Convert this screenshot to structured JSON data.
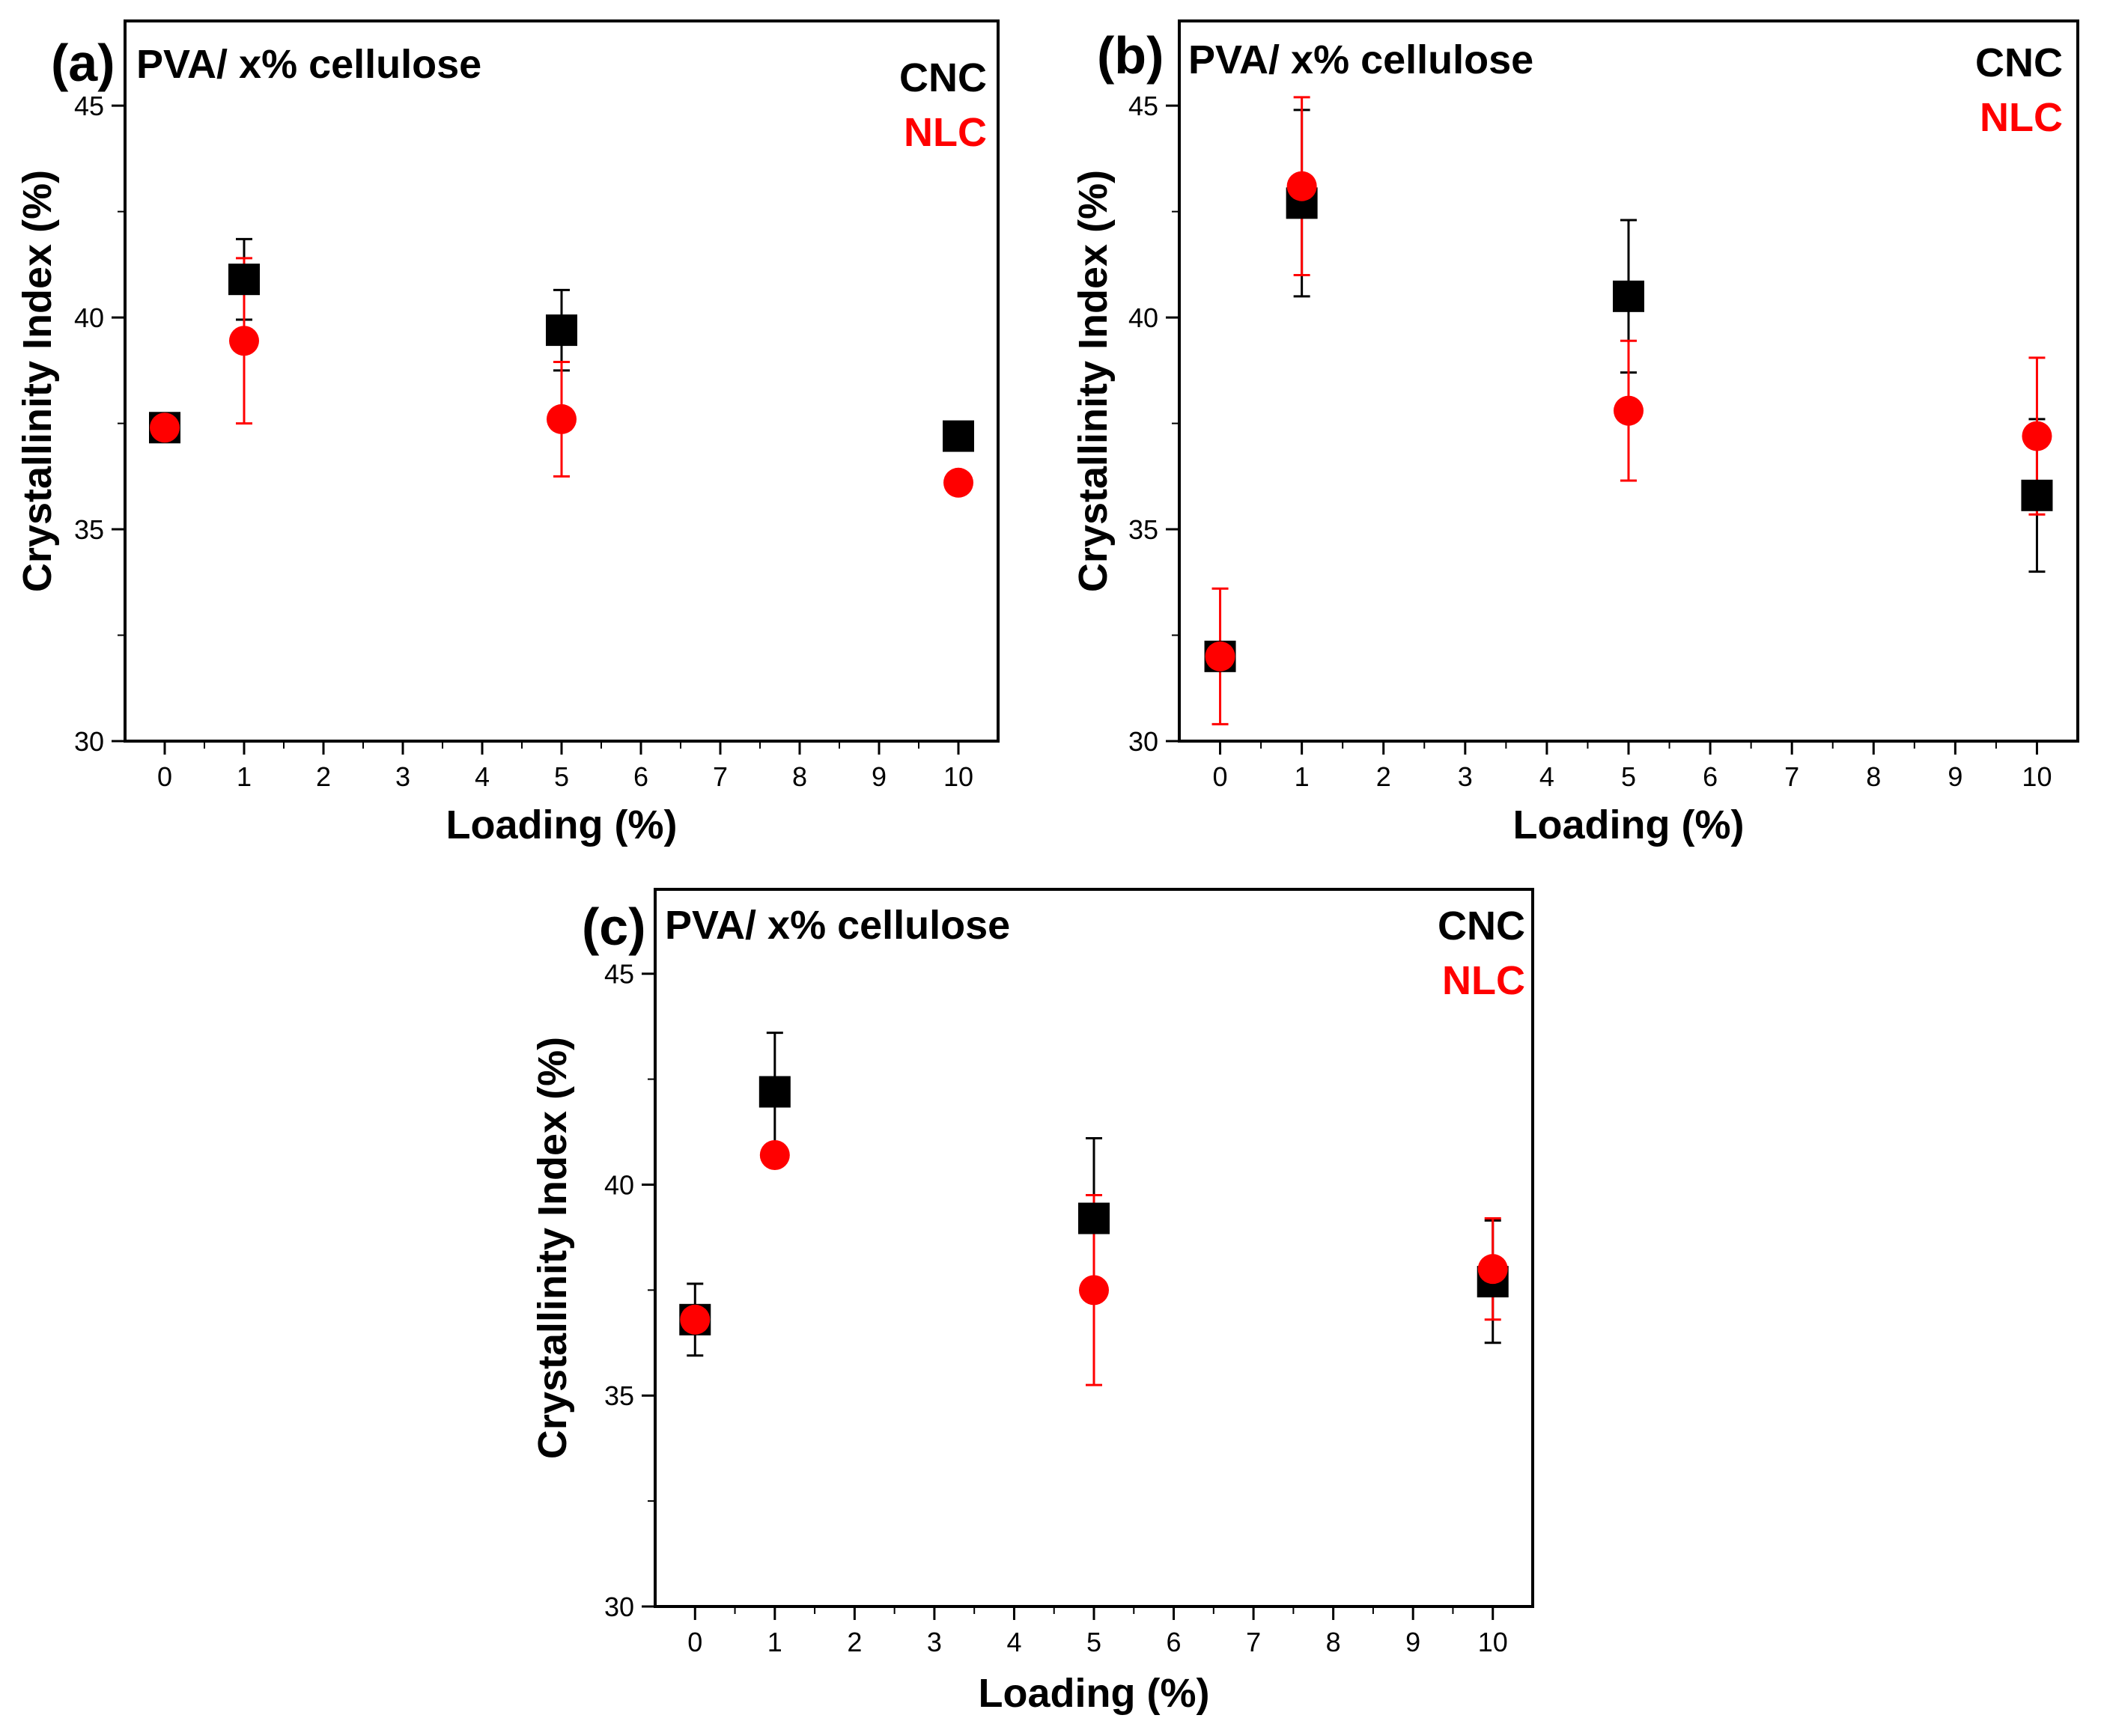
{
  "figure": {
    "description_label": "PVA/ x% cellulose crystallinity index panels"
  },
  "chart_data": [
    {
      "type": "scatter",
      "panel_label": "(a)",
      "title": "PVA/ x% cellulose",
      "xlabel": "Loading (%)",
      "ylabel": "Crystallinity Index (%)",
      "xlim": [
        -0.5,
        10.5
      ],
      "ylim": [
        30,
        47
      ],
      "x_ticks": [
        "0",
        "1",
        "2",
        "3",
        "4",
        "5",
        "6",
        "7",
        "8",
        "9",
        "10"
      ],
      "y_ticks": [
        "30",
        "35",
        "40",
        "45"
      ],
      "legend_position": "top-right",
      "series": [
        {
          "name": "CNC",
          "color": "#000000",
          "marker": "square",
          "x": [
            0,
            1,
            5,
            10
          ],
          "y": [
            37.4,
            40.9,
            39.7,
            37.2
          ],
          "err": [
            0.2,
            0.95,
            0.95,
            0.0
          ]
        },
        {
          "name": "NLC",
          "color": "#ff0000",
          "marker": "circle",
          "x": [
            0,
            1,
            5,
            10
          ],
          "y": [
            37.4,
            39.45,
            37.6,
            36.1
          ],
          "err": [
            0.15,
            1.95,
            1.35,
            0.0
          ]
        }
      ]
    },
    {
      "type": "scatter",
      "panel_label": "(b)",
      "title": "PVA/ x% cellulose",
      "xlabel": "Loading (%)",
      "ylabel": "Crystallinity Index (%)",
      "xlim": [
        -0.5,
        10.5
      ],
      "ylim": [
        30,
        47
      ],
      "x_ticks": [
        "0",
        "1",
        "2",
        "3",
        "4",
        "5",
        "6",
        "7",
        "8",
        "9",
        "10"
      ],
      "y_ticks": [
        "30",
        "35",
        "40",
        "45"
      ],
      "legend_position": "top-right",
      "series": [
        {
          "name": "CNC",
          "color": "#000000",
          "marker": "square",
          "x": [
            0,
            1,
            5,
            10
          ],
          "y": [
            32.0,
            42.7,
            40.5,
            35.8
          ],
          "err": [
            0.15,
            2.2,
            1.8,
            1.8
          ]
        },
        {
          "name": "NLC",
          "color": "#ff0000",
          "marker": "circle",
          "x": [
            0,
            1,
            5,
            10
          ],
          "y": [
            32.0,
            43.1,
            37.8,
            37.2
          ],
          "err": [
            1.6,
            2.1,
            1.65,
            1.85
          ]
        }
      ]
    },
    {
      "type": "scatter",
      "panel_label": "(c)",
      "title": "PVA/ x% cellulose",
      "xlabel": "Loading (%)",
      "ylabel": "Crystallinity Index (%)",
      "xlim": [
        -0.5,
        10.5
      ],
      "ylim": [
        30,
        47
      ],
      "x_ticks": [
        "0",
        "1",
        "2",
        "3",
        "4",
        "5",
        "6",
        "7",
        "8",
        "9",
        "10"
      ],
      "y_ticks": [
        "30",
        "35",
        "40",
        "45"
      ],
      "legend_position": "top-right",
      "series": [
        {
          "name": "CNC",
          "color": "#000000",
          "marker": "square",
          "x": [
            0,
            1,
            5,
            10
          ],
          "y": [
            36.8,
            42.2,
            39.2,
            37.7
          ],
          "err": [
            0.85,
            1.4,
            1.9,
            1.45
          ]
        },
        {
          "name": "NLC",
          "color": "#ff0000",
          "marker": "circle",
          "x": [
            0,
            1,
            5,
            10
          ],
          "y": [
            36.8,
            40.7,
            37.5,
            38.0
          ],
          "err": [
            0.1,
            0.1,
            2.25,
            1.2
          ]
        }
      ]
    }
  ]
}
